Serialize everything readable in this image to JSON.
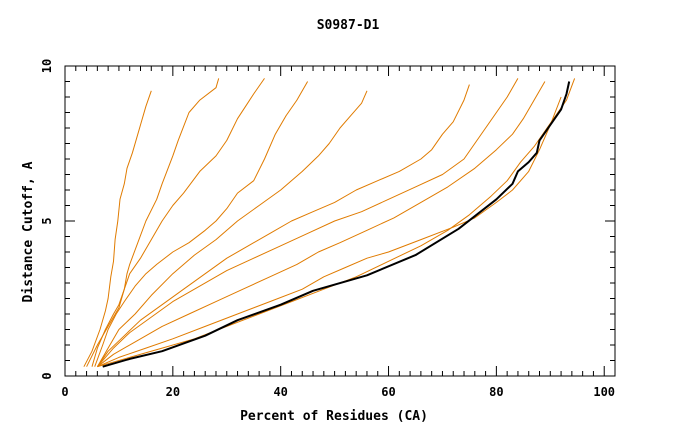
{
  "chart_data": {
    "type": "line",
    "title": "S0987-D1",
    "xlabel": "Percent of Residues (CA)",
    "ylabel": "Distance Cutoff, A",
    "xlim": [
      0,
      102
    ],
    "ylim": [
      0,
      10
    ],
    "x_ticks": [
      0,
      20,
      40,
      60,
      80,
      100
    ],
    "y_ticks": [
      0,
      5,
      10
    ],
    "grid": false,
    "colors": {
      "highlight": "#000000",
      "others": "#e07b00"
    },
    "series": [
      {
        "highlight": true,
        "x": [
          7,
          12,
          18,
          22,
          26,
          32,
          40,
          46,
          56,
          65,
          73,
          80,
          83,
          84,
          86,
          87.5,
          88,
          90,
          92,
          93,
          93.5
        ],
        "y": [
          0.3,
          0.55,
          0.8,
          1.05,
          1.3,
          1.8,
          2.3,
          2.75,
          3.25,
          3.9,
          4.75,
          5.7,
          6.2,
          6.6,
          6.9,
          7.2,
          7.6,
          8.1,
          8.6,
          9.1,
          9.5
        ]
      },
      {
        "x": [
          3.5,
          5,
          6.5,
          7.5,
          8,
          8.5,
          9,
          9.3,
          9.8,
          10.2,
          11,
          11.5,
          12.5,
          14,
          15,
          16
        ],
        "y": [
          0.3,
          0.8,
          1.5,
          2.1,
          2.5,
          3.2,
          3.7,
          4.4,
          5,
          5.7,
          6.2,
          6.7,
          7.2,
          8.1,
          8.7,
          9.2
        ]
      },
      {
        "x": [
          4,
          6,
          8,
          10,
          11,
          11.5,
          12,
          13.5,
          15,
          17,
          18,
          20,
          21,
          23,
          25,
          28,
          28.5
        ],
        "y": [
          0.3,
          1,
          1.6,
          2.2,
          2.8,
          3.3,
          3.6,
          4.3,
          5,
          5.7,
          6.2,
          7.1,
          7.6,
          8.5,
          8.9,
          9.3,
          9.6
        ]
      },
      {
        "x": [
          5,
          6,
          7.5,
          9,
          10,
          11,
          12,
          14,
          16,
          18,
          20,
          22,
          25,
          28,
          30,
          32,
          33.5,
          35,
          37
        ],
        "y": [
          0.3,
          0.9,
          1.5,
          2,
          2.3,
          2.8,
          3.3,
          3.8,
          4.4,
          5,
          5.5,
          5.9,
          6.6,
          7.1,
          7.6,
          8.3,
          8.7,
          9.1,
          9.6
        ]
      },
      {
        "x": [
          5.5,
          7,
          8,
          9.5,
          11,
          13,
          15,
          17,
          20,
          23,
          26,
          28,
          30,
          32,
          35,
          37,
          39,
          41,
          43,
          45
        ],
        "y": [
          0.3,
          1,
          1.5,
          2,
          2.4,
          2.9,
          3.3,
          3.6,
          4,
          4.3,
          4.7,
          5,
          5.4,
          5.9,
          6.3,
          7,
          7.8,
          8.4,
          8.9,
          9.5
        ]
      },
      {
        "x": [
          6,
          8,
          10,
          13,
          16,
          20,
          24,
          28,
          32,
          36,
          40,
          44,
          47,
          49,
          51,
          53,
          55,
          56
        ],
        "y": [
          0.3,
          0.9,
          1.5,
          2,
          2.6,
          3.3,
          3.9,
          4.4,
          5,
          5.5,
          6,
          6.6,
          7.1,
          7.5,
          8,
          8.4,
          8.8,
          9.2
        ]
      },
      {
        "x": [
          6,
          8,
          11,
          14,
          18,
          22,
          26,
          30,
          34,
          38,
          42,
          46,
          50,
          54,
          58,
          62,
          66,
          68,
          70,
          72,
          74,
          75
        ],
        "y": [
          0.3,
          0.8,
          1.3,
          1.8,
          2.3,
          2.8,
          3.3,
          3.8,
          4.2,
          4.6,
          5,
          5.3,
          5.6,
          6,
          6.3,
          6.6,
          7,
          7.3,
          7.8,
          8.2,
          8.9,
          9.4
        ]
      },
      {
        "x": [
          6,
          9,
          12,
          16,
          20,
          25,
          30,
          35,
          40,
          45,
          50,
          55,
          60,
          65,
          70,
          74,
          76,
          78,
          80,
          82,
          84
        ],
        "y": [
          0.3,
          0.9,
          1.4,
          1.9,
          2.4,
          2.9,
          3.4,
          3.8,
          4.2,
          4.6,
          5,
          5.3,
          5.7,
          6.1,
          6.5,
          7,
          7.5,
          8,
          8.5,
          9,
          9.6
        ]
      },
      {
        "x": [
          6,
          9,
          13,
          18,
          23,
          28,
          33,
          38,
          43,
          47,
          51,
          56,
          61,
          66,
          71,
          76,
          80,
          83,
          85,
          87,
          89
        ],
        "y": [
          0.3,
          0.7,
          1.1,
          1.6,
          2,
          2.4,
          2.8,
          3.2,
          3.6,
          4,
          4.3,
          4.7,
          5.1,
          5.6,
          6.1,
          6.7,
          7.3,
          7.8,
          8.3,
          8.9,
          9.5
        ]
      },
      {
        "x": [
          6,
          10,
          15,
          20,
          26,
          32,
          38,
          44,
          48,
          52,
          56,
          60,
          66,
          72,
          76,
          80,
          83,
          86,
          88,
          90,
          92
        ],
        "y": [
          0.3,
          0.6,
          0.9,
          1.2,
          1.6,
          2,
          2.4,
          2.8,
          3.2,
          3.5,
          3.8,
          4,
          4.4,
          4.8,
          5.1,
          5.6,
          6,
          6.6,
          7.3,
          8.1,
          9
        ]
      },
      {
        "x": [
          6,
          12,
          18,
          24,
          30,
          36,
          42,
          48,
          54,
          60,
          66,
          71,
          75,
          79,
          82,
          84.5,
          87,
          89,
          91,
          93,
          94.5
        ],
        "y": [
          0.3,
          0.6,
          0.9,
          1.2,
          1.6,
          2,
          2.4,
          2.8,
          3.2,
          3.7,
          4.2,
          4.7,
          5.2,
          5.8,
          6.3,
          6.9,
          7.4,
          7.9,
          8.4,
          8.9,
          9.6
        ]
      }
    ]
  }
}
